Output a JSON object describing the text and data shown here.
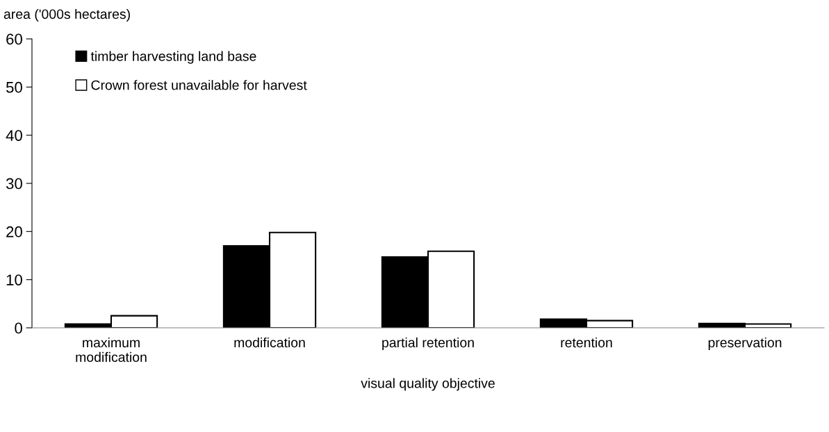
{
  "chart_data": {
    "type": "bar",
    "ylabel": "area ('000s hectares)",
    "xlabel": "visual quality objective",
    "categories": [
      "maximum\nmodification",
      "modification",
      "partial retention",
      "retention",
      "preservation"
    ],
    "series": [
      {
        "name": "timber harvesting land base",
        "color": "#000000",
        "values": [
          0.8,
          17.0,
          14.7,
          1.8,
          0.9
        ]
      },
      {
        "name": "Crown forest unavailable for harvest",
        "color": "#ffffff",
        "values": [
          2.5,
          19.8,
          15.9,
          1.5,
          0.8
        ]
      }
    ],
    "ylim": [
      0,
      60
    ],
    "yticks": [
      0,
      10,
      20,
      30,
      40,
      50,
      60
    ],
    "grid": false,
    "legend": "top left"
  }
}
